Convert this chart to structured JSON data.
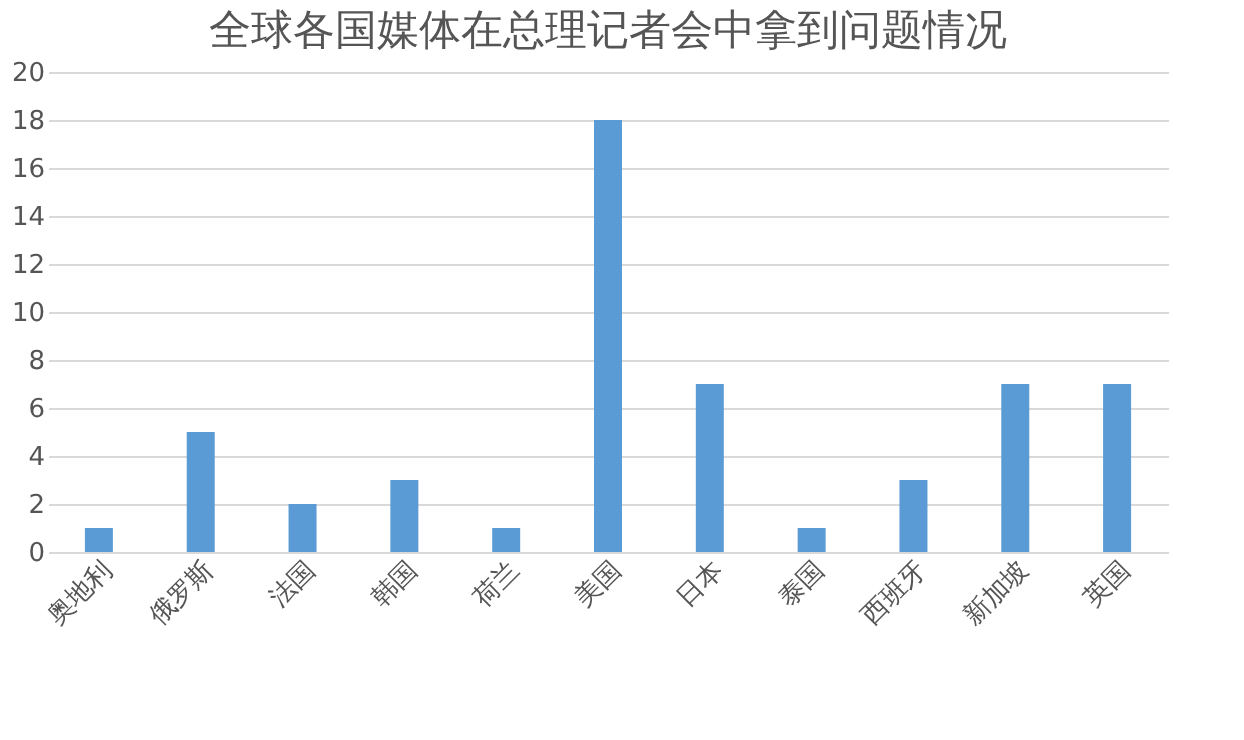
{
  "chart_data": {
    "type": "bar",
    "title": "全球各国媒体在总理记者会中拿到问题情况",
    "categories": [
      "奥地利",
      "俄罗斯",
      "法国",
      "韩国",
      "荷兰",
      "美国",
      "日本",
      "泰国",
      "西班牙",
      "新加坡",
      "英国"
    ],
    "values": [
      1,
      5,
      2,
      3,
      1,
      18,
      7,
      1,
      3,
      7,
      7
    ],
    "color": "#5b9bd5",
    "ylim": [
      0,
      20
    ],
    "yticks": [
      0,
      2,
      4,
      6,
      8,
      10,
      12,
      14,
      16,
      18,
      20
    ],
    "grid": "y"
  }
}
